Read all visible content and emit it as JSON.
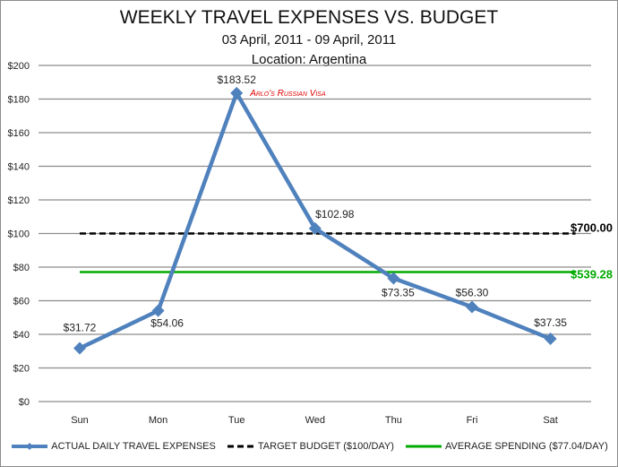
{
  "chart_data": {
    "type": "line",
    "title": "WEEKLY TRAVEL EXPENSES VS. BUDGET",
    "subtitle": "03 April, 2011 - 09 April, 2011",
    "subtitle2": "Location: Argentina",
    "xlabel": "",
    "ylabel": "",
    "categories": [
      "Sun",
      "Mon",
      "Tue",
      "Wed",
      "Thu",
      "Fri",
      "Sat"
    ],
    "yticks": [
      "$0",
      "$20",
      "$40",
      "$60",
      "$80",
      "$100",
      "$120",
      "$140",
      "$160",
      "$180",
      "$200"
    ],
    "ylim": [
      0,
      200
    ],
    "grid": true,
    "legend_position": "bottom",
    "series": [
      {
        "name": "ACTUAL DAILY TRAVEL EXPENSES",
        "values": [
          31.72,
          54.06,
          183.52,
          102.98,
          73.35,
          56.3,
          37.35
        ],
        "labels": [
          "$31.72",
          "$54.06",
          "$183.52",
          "$102.98",
          "$73.35",
          "$56.30",
          "$37.35"
        ],
        "color": "#4f81bd",
        "style": "solid-diamond"
      },
      {
        "name": "TARGET BUDGET ($100/DAY)",
        "values": [
          100,
          100,
          100,
          100,
          100,
          100,
          100
        ],
        "color": "#000000",
        "style": "dashed",
        "end_label": "$700.00"
      },
      {
        "name": "AVERAGE SPENDING ($77.04/DAY)",
        "values": [
          77.04,
          77.04,
          77.04,
          77.04,
          77.04,
          77.04,
          77.04
        ],
        "color": "#00aa00",
        "style": "solid",
        "end_label": "$539.28"
      }
    ],
    "annotations": [
      {
        "text": "Arlo's Russian Visa",
        "category": "Tue",
        "color": "#e00000"
      }
    ]
  },
  "header": {
    "title": "WEEKLY TRAVEL EXPENSES VS. BUDGET",
    "dates": "03 April, 2011 - 09 April, 2011",
    "location": "Location: Argentina"
  },
  "legend": {
    "actual": "ACTUAL DAILY TRAVEL EXPENSES",
    "target": "TARGET BUDGET ($100/DAY)",
    "average": "AVERAGE SPENDING ($77.04/DAY)"
  },
  "end_labels": {
    "target": "$700.00",
    "average": "$539.28"
  },
  "annotation": "Arlo's Russian Visa",
  "colors": {
    "actual": "#4f81bd",
    "target": "#000000",
    "average": "#00aa00",
    "annotation": "#e00000",
    "grid": "#8c8c8c"
  }
}
